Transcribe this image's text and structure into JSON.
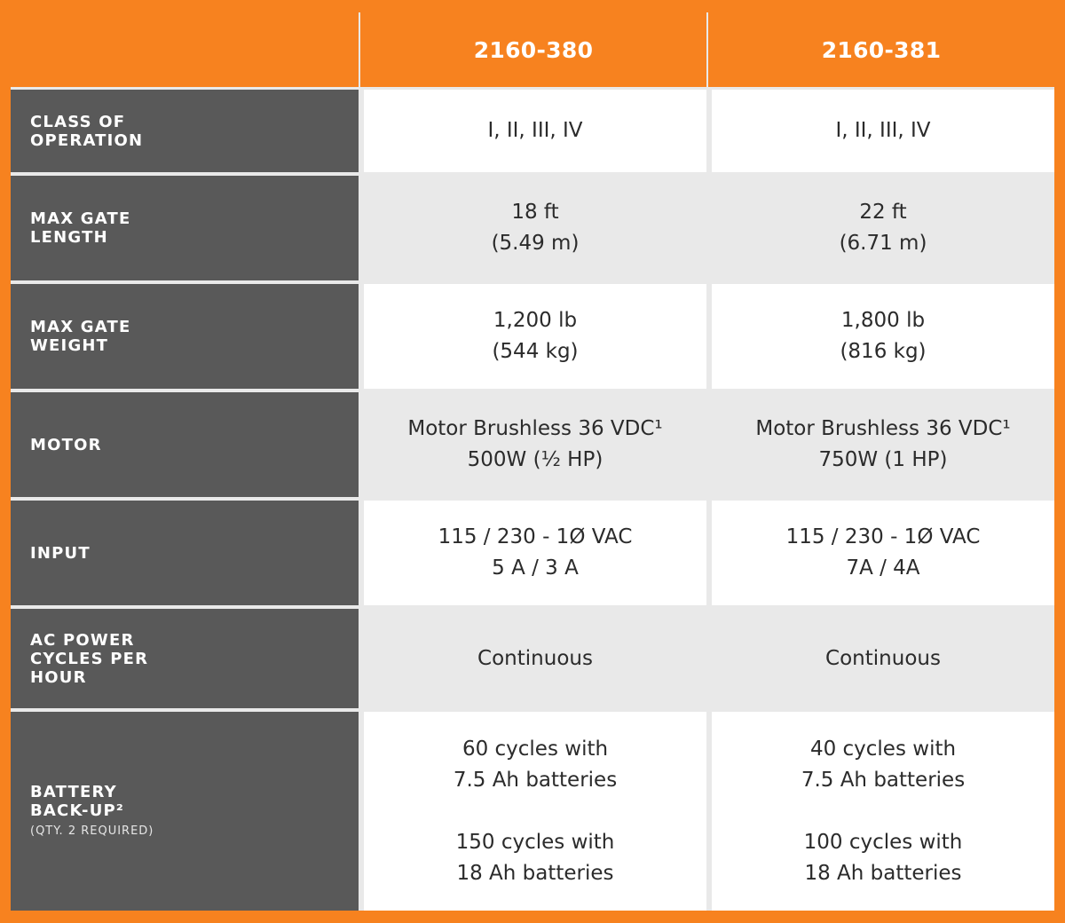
{
  "header": {
    "col1": "2160-380",
    "col2": "2160-381"
  },
  "rows": [
    {
      "label": "CLASS OF OPERATION",
      "c1": [
        "I, II, III, IV"
      ],
      "c2": [
        "I, II, III, IV"
      ]
    },
    {
      "label": "MAX GATE LENGTH",
      "c1": [
        "18 ft",
        "(5.49 m)"
      ],
      "c2": [
        "22 ft",
        "(6.71 m)"
      ]
    },
    {
      "label": "MAX GATE WEIGHT",
      "c1": [
        "1,200 lb",
        "(544 kg)"
      ],
      "c2": [
        "1,800 lb",
        "(816 kg)"
      ]
    },
    {
      "label": "MOTOR",
      "c1": [
        "Motor Brushless 36 VDC¹",
        "500W (½ HP)"
      ],
      "c2": [
        "Motor Brushless 36 VDC¹",
        "750W (1 HP)"
      ]
    },
    {
      "label": "INPUT",
      "c1": [
        "115 / 230 - 1Ø VAC",
        "5 A / 3 A"
      ],
      "c2": [
        "115 / 230 - 1Ø VAC",
        "7A / 4A"
      ]
    },
    {
      "label": "AC POWER CYCLES PER HOUR",
      "c1": [
        "Continuous"
      ],
      "c2": [
        "Continuous"
      ]
    },
    {
      "label": "BATTERY BACK-UP²",
      "label_sub": "(QTY. 2 REQUIRED)",
      "c1": [
        "60 cycles with",
        "7.5 Ah batteries",
        "150 cycles with",
        "18 Ah batteries"
      ],
      "c2": [
        "40 cycles with",
        "7.5 Ah batteries",
        "100 cycles with",
        "18 Ah batteries"
      ]
    }
  ]
}
